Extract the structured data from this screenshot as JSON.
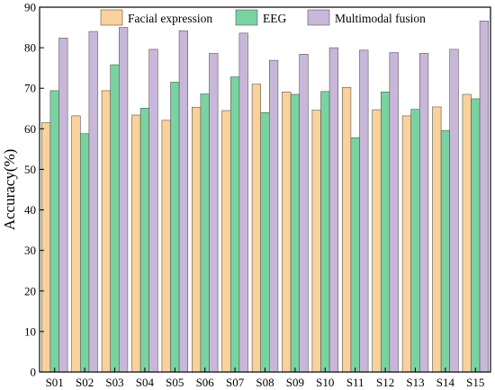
{
  "chart_data": {
    "type": "bar",
    "title": "",
    "xlabel": "",
    "ylabel": "Accuracy(%)",
    "ylim": [
      0,
      90
    ],
    "yticks": [
      0,
      10,
      20,
      30,
      40,
      50,
      60,
      70,
      80,
      90
    ],
    "categories": [
      "S01",
      "S02",
      "S03",
      "S04",
      "S05",
      "S06",
      "S07",
      "S08",
      "S09",
      "S10",
      "S11",
      "S12",
      "S13",
      "S14",
      "S15"
    ],
    "series": [
      {
        "name": "Facial expression",
        "color": "#f9d19a",
        "values": [
          61.5,
          63.2,
          69.4,
          63.4,
          62.1,
          65.3,
          64.5,
          71.0,
          69.1,
          64.6,
          70.2,
          64.7,
          63.2,
          65.4,
          68.5
        ]
      },
      {
        "name": "EEG",
        "color": "#79d3a0",
        "values": [
          69.4,
          58.8,
          75.8,
          65.1,
          71.5,
          68.6,
          72.8,
          64.0,
          68.5,
          69.2,
          57.8,
          69.1,
          64.8,
          59.6,
          67.4
        ]
      },
      {
        "name": "Multimodal fusion",
        "color": "#c9b7da",
        "values": [
          82.4,
          84.0,
          85.0,
          79.6,
          84.2,
          78.6,
          83.6,
          76.9,
          78.4,
          80.0,
          79.4,
          78.8,
          78.6,
          79.6,
          86.6
        ]
      }
    ],
    "legend_position": "top-right",
    "grid": false
  }
}
